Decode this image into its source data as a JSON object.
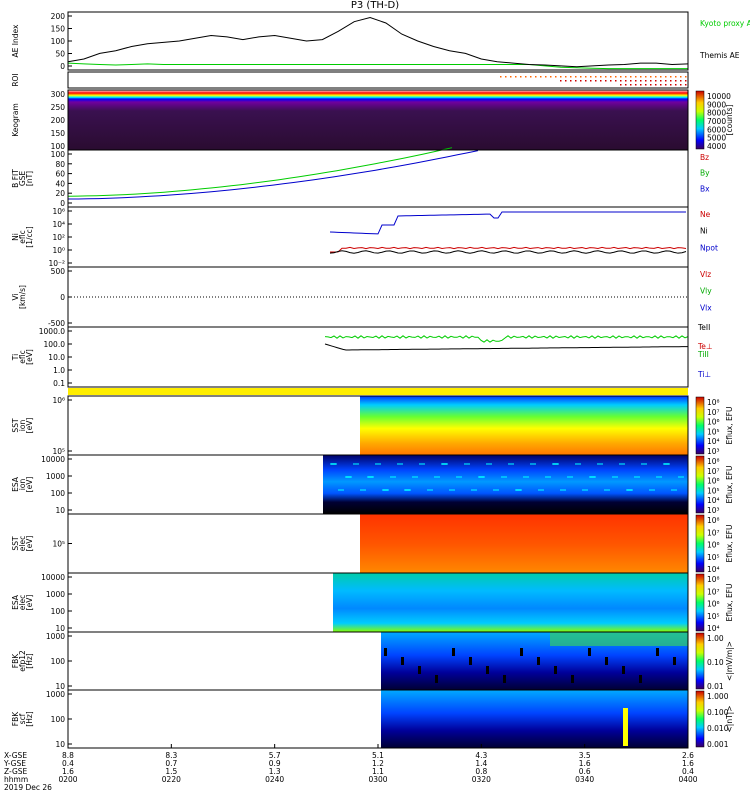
{
  "title": "P3 (TH-D)",
  "chart_data": [
    {
      "type": "line",
      "panel": "ae",
      "ylabel": "AE Index",
      "ticks": [
        "200",
        "150",
        "100",
        "50",
        "0"
      ],
      "ylim": [
        0,
        210
      ],
      "series": [
        {
          "name": "Kyoto proxy AE",
          "color": "#00cc00",
          "values": [
            25,
            22,
            20,
            18,
            20,
            22,
            20,
            20,
            20,
            20,
            20,
            20,
            20,
            20,
            20,
            20,
            20,
            20,
            20,
            20,
            20,
            20,
            20,
            20,
            20,
            20,
            20,
            20,
            20,
            20,
            15,
            10,
            8,
            6,
            5,
            5,
            5,
            5,
            5,
            5
          ]
        },
        {
          "name": "Themis AE",
          "color": "#000000",
          "values": [
            30,
            40,
            60,
            70,
            85,
            95,
            100,
            105,
            115,
            125,
            120,
            110,
            120,
            125,
            115,
            105,
            110,
            140,
            175,
            190,
            170,
            130,
            105,
            85,
            70,
            60,
            40,
            30,
            25,
            20,
            18,
            15,
            12,
            15,
            18,
            20,
            25,
            25,
            20,
            22
          ]
        }
      ],
      "legend": [
        "Kyoto proxy AE",
        "Themis AE"
      ]
    },
    {
      "type": "line",
      "panel": "roi",
      "ylabel": "ROI"
    },
    {
      "type": "heatmap",
      "panel": "keogram",
      "ylabel": "Keogram",
      "ticks": [
        "300",
        "250",
        "200",
        "150",
        "100"
      ],
      "colorbar": {
        "label": "[counts]",
        "ticks": [
          "10000",
          "9000",
          "8000",
          "7000",
          "6000",
          "5000",
          "4000"
        ]
      }
    },
    {
      "type": "line",
      "panel": "bfield",
      "ylabel": [
        "B FIT",
        "GSE",
        "[nT]"
      ],
      "ticks": [
        "100",
        "80",
        "60",
        "40",
        "20",
        "0"
      ],
      "ylim": [
        0,
        100
      ],
      "legend": [
        {
          "text": "Bz",
          "color": "#cc0000"
        },
        {
          "text": "By",
          "color": "#00aa00"
        },
        {
          "text": "Bx",
          "color": "#0000cc"
        }
      ]
    },
    {
      "type": "line",
      "panel": "density",
      "ylabel": [
        "Ni",
        "eflc",
        "[1/cc]"
      ],
      "ticks": [
        "10⁶",
        "10⁴",
        "10²",
        "10⁰",
        "10⁻²"
      ],
      "legend": [
        {
          "text": "Ne",
          "color": "#cc0000"
        },
        {
          "text": "Ni",
          "color": "#000000"
        },
        {
          "text": "Npot",
          "color": "#0000cc"
        }
      ]
    },
    {
      "type": "line",
      "panel": "velocity",
      "ylabel": [
        "Vi",
        "[km/s]"
      ],
      "ticks": [
        "500",
        "0",
        "-500"
      ],
      "legend": [
        {
          "text": "Vlz",
          "color": "#cc0000"
        },
        {
          "text": "Vly",
          "color": "#00aa00"
        },
        {
          "text": "Vlx",
          "color": "#0000cc"
        }
      ]
    },
    {
      "type": "line",
      "panel": "temperature",
      "ylabel": [
        "Ti",
        "eflc",
        "[eV]"
      ],
      "ticks": [
        "1000.0",
        "100.0",
        "10.0",
        "1.0",
        "0.1"
      ],
      "legend": [
        {
          "text": "TeII",
          "color": "#000000"
        },
        {
          "text": "Te⊥",
          "color": "#cc0000"
        },
        {
          "text": "TiII",
          "color": "#00aa00"
        },
        {
          "text": "Ti⊥",
          "color": "#0000cc"
        }
      ]
    },
    {
      "type": "heatmap",
      "panel": "sst-ion",
      "ylabel": [
        "SST",
        "ion",
        "[eV]"
      ],
      "ticks": [
        "10⁶",
        "10⁵"
      ],
      "colorbar": {
        "label": "Eflux, EFU",
        "ticks": [
          "10⁸",
          "10⁷",
          "10⁶",
          "10⁵",
          "10⁴",
          "10³"
        ]
      }
    },
    {
      "type": "heatmap",
      "panel": "esa-ion",
      "ylabel": [
        "ESA",
        "ion",
        "[eV]"
      ],
      "ticks": [
        "10000",
        "1000",
        "100",
        "10"
      ],
      "colorbar": {
        "label": "Eflux, EFU",
        "ticks": [
          "10⁸",
          "10⁷",
          "10⁶",
          "10⁵",
          "10⁴",
          "10³"
        ]
      }
    },
    {
      "type": "heatmap",
      "panel": "sst-elec",
      "ylabel": [
        "SST",
        "elec",
        "[eV]"
      ],
      "ticks": [
        "10⁵"
      ],
      "colorbar": {
        "label": "Eflux, EFU",
        "ticks": [
          "10⁸",
          "10⁷",
          "10⁶",
          "10⁵",
          "10⁴"
        ]
      }
    },
    {
      "type": "heatmap",
      "panel": "esa-elec",
      "ylabel": [
        "ESA",
        "elec",
        "[eV]"
      ],
      "ticks": [
        "10000",
        "1000",
        "100",
        "10"
      ],
      "colorbar": {
        "label": "Eflux, EFU",
        "ticks": [
          "10⁸",
          "10⁷",
          "10⁶",
          "10⁵",
          "10⁴"
        ]
      }
    },
    {
      "type": "heatmap",
      "panel": "fbk-e",
      "ylabel": [
        "FBK",
        "efp12",
        "[Hz]"
      ],
      "ticks": [
        "1000",
        "100",
        "10"
      ],
      "colorbar": {
        "label": "<|mV/m|>",
        "ticks": [
          "1.00",
          "0.10",
          "0.01"
        ]
      }
    },
    {
      "type": "heatmap",
      "panel": "fbk-b",
      "ylabel": [
        "FBK",
        "scf",
        "[Hz]"
      ],
      "ticks": [
        "1000",
        "100",
        "10"
      ],
      "colorbar": {
        "label": "<|nT|>",
        "ticks": [
          "1.000",
          "0.100",
          "0.010",
          "0.001"
        ]
      }
    }
  ],
  "xaxis": {
    "row_labels": [
      "X-GSE",
      "Y-GSE",
      "Z-GSE",
      "hhmm"
    ],
    "date": "2019 Dec 26",
    "columns": [
      {
        "values": [
          "8.8",
          "0.4",
          "1.6",
          "0200"
        ]
      },
      {
        "values": [
          "8.3",
          "0.7",
          "1.5",
          "0220"
        ]
      },
      {
        "values": [
          "5.7",
          "0.9",
          "1.3",
          "0240"
        ]
      },
      {
        "values": [
          "5.1",
          "1.2",
          "1.1",
          "0300"
        ]
      },
      {
        "values": [
          "4.3",
          "1.4",
          "0.8",
          "0320"
        ]
      },
      {
        "values": [
          "3.5",
          "1.6",
          "0.6",
          "0340"
        ]
      },
      {
        "values": [
          "2.6",
          "1.6",
          "0.4",
          "0400"
        ]
      }
    ]
  }
}
